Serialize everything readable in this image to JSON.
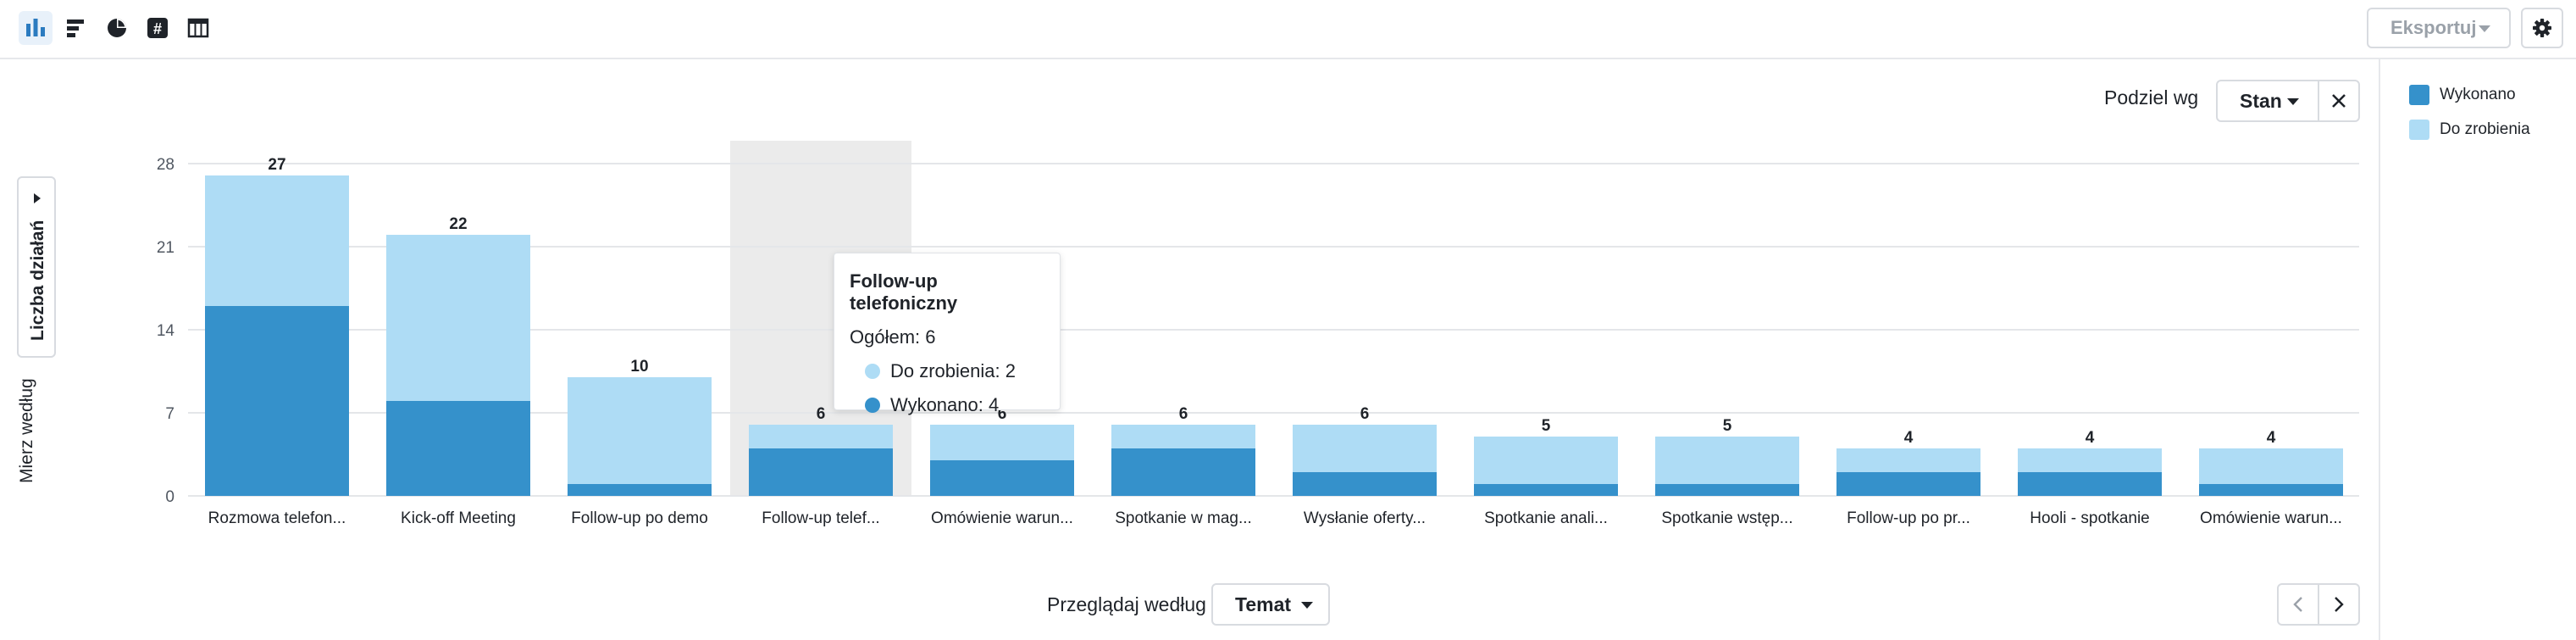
{
  "toolbar": {
    "view_icons": [
      "bar-chart-icon",
      "horizontal-bar-icon",
      "pie-chart-icon",
      "number-icon",
      "table-icon"
    ],
    "export_label": "Eksportuj",
    "settings_icon": "gear-icon"
  },
  "split": {
    "label": "Podziel wg",
    "value": "Stan"
  },
  "measure": {
    "label": "Mierz według",
    "value": "Liczba działań"
  },
  "browse": {
    "label": "Przeglądaj według",
    "value": "Temat"
  },
  "legend": [
    {
      "name": "Wykonano",
      "color": "#3591cb"
    },
    {
      "name": "Do zrobienia",
      "color": "#aedcf5"
    }
  ],
  "tooltip": {
    "title": "Follow-up telefoniczny",
    "total": "Ogółem: 6",
    "rows": [
      {
        "text": "Do zrobienia: 2",
        "color": "#aedcf5"
      },
      {
        "text": "Wykonano: 4",
        "color": "#3591cb"
      }
    ]
  },
  "colors": {
    "done": "#3591cb",
    "todo": "#aedcf5",
    "highlight": "#ebebeb",
    "grid": "#e4e6e9"
  },
  "chart_data": {
    "type": "bar",
    "stacked": true,
    "categories": [
      "Rozmowa telefon...",
      "Kick-off Meeting",
      "Follow-up po demo",
      "Follow-up telef...",
      "Omówienie warun...",
      "Spotkanie w mag...",
      "Wysłanie oferty...",
      "Spotkanie anali...",
      "Spotkanie wstęp...",
      "Follow-up po pr...",
      "Hooli - spotkanie",
      "Omówienie warun..."
    ],
    "series": [
      {
        "name": "Wykonano",
        "values": [
          16,
          8,
          1,
          4,
          3,
          4,
          2,
          1,
          1,
          2,
          2,
          1
        ]
      },
      {
        "name": "Do zrobienia",
        "values": [
          11,
          14,
          9,
          2,
          3,
          2,
          4,
          4,
          4,
          2,
          2,
          3
        ]
      }
    ],
    "totals": [
      27,
      22,
      10,
      6,
      6,
      6,
      6,
      5,
      5,
      4,
      4,
      4
    ],
    "yticks": [
      0,
      7,
      14,
      21,
      28
    ],
    "ylim": [
      0,
      28
    ],
    "highlighted_index": 3,
    "grid": true
  }
}
